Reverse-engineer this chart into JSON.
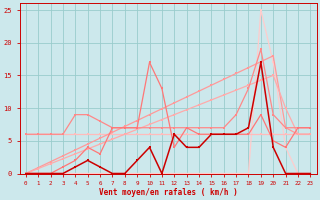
{
  "x": [
    0,
    1,
    2,
    3,
    4,
    5,
    6,
    7,
    8,
    9,
    10,
    11,
    12,
    13,
    14,
    15,
    16,
    17,
    18,
    19,
    20,
    21,
    22,
    23
  ],
  "line_flat_light": [
    6,
    6,
    6,
    6,
    6,
    6,
    6,
    6,
    6,
    6,
    6,
    6,
    6,
    6,
    6,
    6,
    6,
    6,
    6,
    6,
    6,
    6,
    6,
    6
  ],
  "line_diagonal1": [
    0,
    0.75,
    1.5,
    2.25,
    3,
    3.75,
    4.5,
    5.25,
    6,
    6.75,
    7.5,
    8.25,
    9,
    9.75,
    10.5,
    11.25,
    12,
    12.75,
    13.5,
    14.25,
    15,
    10,
    6,
    6
  ],
  "line_diagonal2": [
    0,
    0.9,
    1.8,
    2.7,
    3.6,
    4.5,
    5.4,
    6.3,
    7.2,
    8.1,
    9,
    9.9,
    10.8,
    11.7,
    12.6,
    13.5,
    14.4,
    15.3,
    16.2,
    17.1,
    18,
    7,
    6,
    6
  ],
  "line_zigzag": [
    6,
    6,
    6,
    6,
    9,
    9,
    8,
    7,
    7,
    7,
    7,
    7,
    7,
    7,
    7,
    7,
    7,
    9,
    13,
    19,
    9,
    7,
    7,
    7
  ],
  "line_jagged": [
    0,
    0,
    0,
    1,
    2,
    4,
    3,
    7,
    7,
    7,
    17,
    13,
    4,
    7,
    6,
    6,
    6,
    6,
    6,
    9,
    5,
    4,
    7,
    7
  ],
  "line_peak": [
    0,
    0,
    0,
    0,
    0,
    0,
    0,
    0,
    0,
    0,
    0,
    0,
    0,
    0,
    0,
    0,
    0,
    0,
    0,
    25,
    17,
    4,
    0,
    0
  ],
  "line_dark_main": [
    0,
    0,
    0,
    0,
    1,
    2,
    1,
    0,
    0,
    2,
    4,
    0,
    6,
    4,
    4,
    6,
    6,
    6,
    7,
    17,
    4,
    0,
    0,
    0
  ],
  "color_flat_light": "#ffbbbb",
  "color_diag1": "#ffaaaa",
  "color_diag2": "#ff9999",
  "color_zigzag": "#ff8888",
  "color_jagged": "#ff7777",
  "color_peak": "#ffcccc",
  "color_dark": "#cc0000",
  "bg_color": "#cce8ec",
  "grid_color": "#99cccc",
  "xlabel": "Vent moyen/en rafales ( km/h )",
  "xlabel_color": "#cc0000",
  "axis_color": "#cc0000",
  "tick_color": "#cc0000",
  "xlim": [
    -0.5,
    23.5
  ],
  "ylim": [
    0,
    26
  ],
  "yticks": [
    0,
    5,
    10,
    15,
    20,
    25
  ],
  "xticks": [
    0,
    1,
    2,
    3,
    4,
    5,
    6,
    7,
    8,
    9,
    10,
    11,
    12,
    13,
    14,
    15,
    16,
    17,
    18,
    19,
    20,
    21,
    22,
    23
  ]
}
